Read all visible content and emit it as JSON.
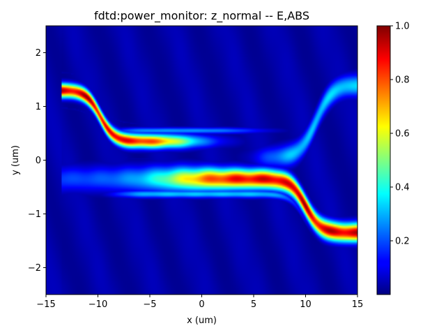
{
  "chart_data": {
    "type": "heatmap",
    "title": "fdtd:power_monitor: z_normal -- E,ABS",
    "xlabel": "x (um)",
    "ylabel": "y (um)",
    "xlim": [
      -15,
      15
    ],
    "ylim": [
      -2.5,
      2.5
    ],
    "x_ticks": [
      {
        "value": -15,
        "label": "−15"
      },
      {
        "value": -10,
        "label": "−10"
      },
      {
        "value": -5,
        "label": "−5"
      },
      {
        "value": 0,
        "label": "0"
      },
      {
        "value": 5,
        "label": "5"
      },
      {
        "value": 10,
        "label": "10"
      },
      {
        "value": 15,
        "label": "15"
      }
    ],
    "y_ticks": [
      {
        "value": 2,
        "label": "2"
      },
      {
        "value": 1,
        "label": "1"
      },
      {
        "value": 0,
        "label": "0"
      },
      {
        "value": -1,
        "label": "−1"
      },
      {
        "value": -2,
        "label": "−2"
      }
    ],
    "colormap": "jet",
    "colorbar": {
      "vmin": 0,
      "vmax": 1.0,
      "ticks": [
        {
          "value": 0.2,
          "label": "0.2"
        },
        {
          "value": 0.4,
          "label": "0.4"
        },
        {
          "value": 0.6,
          "label": "0.6"
        },
        {
          "value": 0.8,
          "label": "0.8"
        },
        {
          "value": 1.0,
          "label": "1.0"
        }
      ]
    },
    "field_description": {
      "source_x": -13.5,
      "input_waveguide_center_y": 1.3,
      "upper_arm_center_y": 0.35,
      "lower_arm_center_y": -0.35,
      "output_through_center_y": -1.35,
      "output_cross_center_y": 1.4,
      "peak_intensity": 1.0
    }
  }
}
